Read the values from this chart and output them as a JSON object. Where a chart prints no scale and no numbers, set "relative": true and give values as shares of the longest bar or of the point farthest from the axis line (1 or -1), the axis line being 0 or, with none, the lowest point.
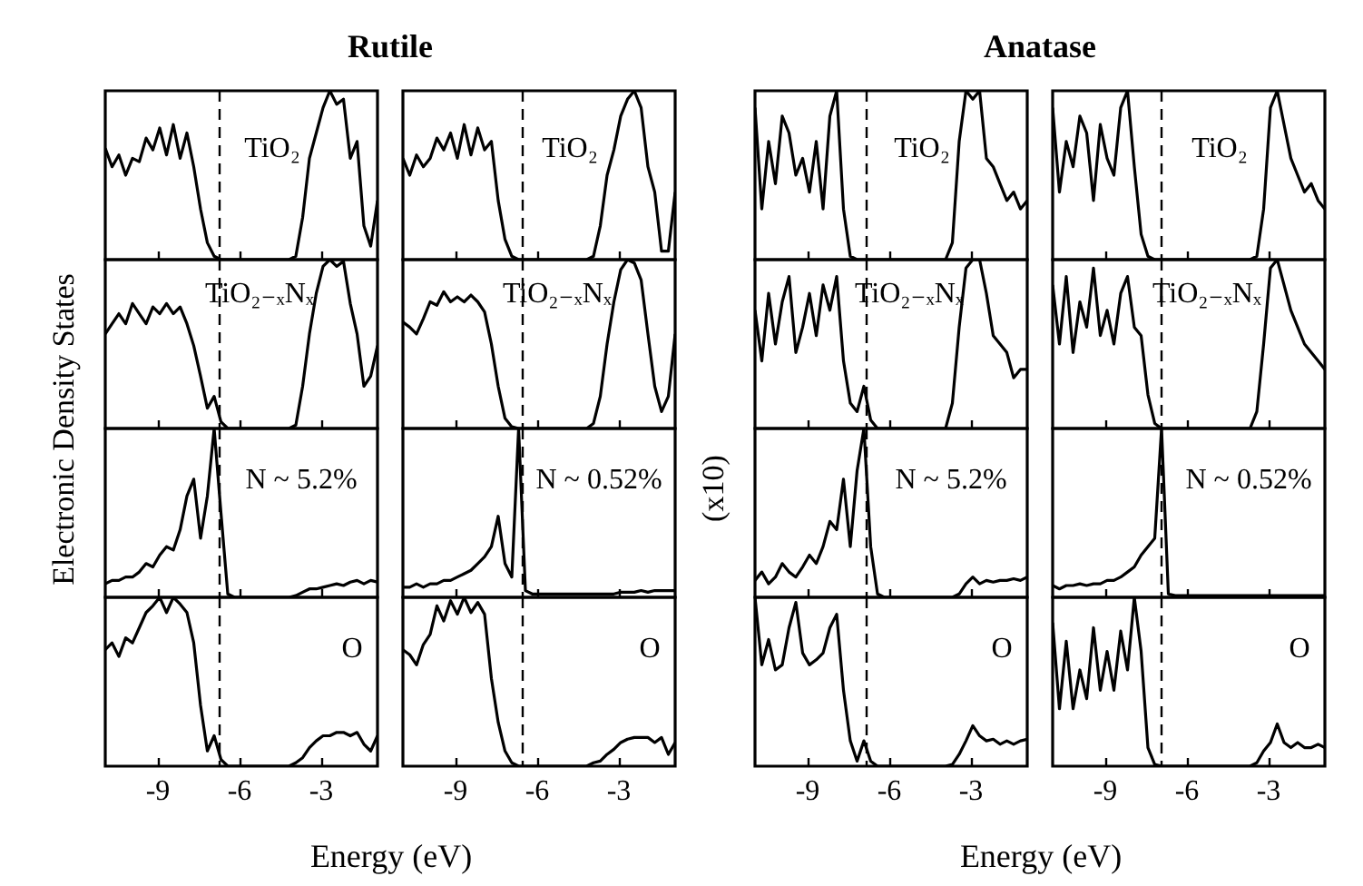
{
  "chart_data": [
    {
      "type": "line",
      "title": "Rutile",
      "annotations": [
        "TiO₂"
      ],
      "relative": true,
      "xlim": [
        -10.9,
        -0.9
      ],
      "xticks": [
        -9,
        -6,
        -3
      ],
      "tick_labels": false,
      "ref_lines": [
        {
          "axis": "x",
          "value": -6.7,
          "line_style": "dashed"
        }
      ],
      "x": [
        -10.9,
        -10.65,
        -10.4,
        -10.15,
        -9.9,
        -9.65,
        -9.4,
        -9.15,
        -8.9,
        -8.65,
        -8.4,
        -8.15,
        -7.9,
        -7.65,
        -7.4,
        -7.15,
        -6.9,
        -6.65,
        -6.4,
        -6.15,
        -5.9,
        -5.65,
        -5.4,
        -5.15,
        -4.9,
        -4.65,
        -4.4,
        -4.15,
        -3.9,
        -3.65,
        -3.4,
        -3.15,
        -2.9,
        -2.65,
        -2.4,
        -2.15,
        -1.9,
        -1.65,
        -1.4,
        -1.15,
        -0.9
      ],
      "series": [
        {
          "color": "#000000",
          "values": [
            0.66,
            0.55,
            0.62,
            0.5,
            0.6,
            0.58,
            0.72,
            0.65,
            0.78,
            0.62,
            0.8,
            0.6,
            0.75,
            0.55,
            0.3,
            0.1,
            0.02,
            0,
            0,
            0,
            0,
            0,
            0,
            0,
            0,
            0,
            0,
            0,
            0.02,
            0.25,
            0.6,
            0.75,
            0.9,
            1,
            0.92,
            0.95,
            0.6,
            0.7,
            0.2,
            0.08,
            0.35
          ]
        }
      ]
    },
    {
      "type": "line",
      "annotations": [
        "TiO₂"
      ],
      "relative": true,
      "xlim": [
        -10.9,
        -0.9
      ],
      "xticks": [
        -9,
        -6,
        -3
      ],
      "tick_labels": false,
      "ref_lines": [
        {
          "axis": "x",
          "value": -6.5,
          "line_style": "dashed"
        }
      ],
      "x": [
        -10.9,
        -10.65,
        -10.4,
        -10.15,
        -9.9,
        -9.65,
        -9.4,
        -9.15,
        -8.9,
        -8.65,
        -8.4,
        -8.15,
        -7.9,
        -7.65,
        -7.4,
        -7.15,
        -6.9,
        -6.65,
        -6.4,
        -6.15,
        -5.9,
        -5.65,
        -5.4,
        -5.15,
        -4.9,
        -4.65,
        -4.4,
        -4.15,
        -3.9,
        -3.65,
        -3.4,
        -3.15,
        -2.9,
        -2.65,
        -2.4,
        -2.15,
        -1.9,
        -1.65,
        -1.4,
        -1.15,
        -0.9
      ],
      "series": [
        {
          "color": "#000000",
          "values": [
            0.6,
            0.5,
            0.62,
            0.55,
            0.6,
            0.72,
            0.65,
            0.75,
            0.6,
            0.8,
            0.62,
            0.78,
            0.65,
            0.7,
            0.35,
            0.12,
            0.02,
            0,
            0,
            0,
            0,
            0,
            0,
            0,
            0,
            0,
            0,
            0,
            0.02,
            0.2,
            0.5,
            0.65,
            0.85,
            0.95,
            1,
            0.9,
            0.55,
            0.4,
            0.05,
            0.05,
            0.4
          ]
        }
      ]
    },
    {
      "type": "line",
      "title": "Anatase",
      "annotations": [
        "TiO₂"
      ],
      "relative": true,
      "xlim": [
        -10.9,
        -0.9
      ],
      "xticks": [
        -9,
        -6,
        -3
      ],
      "tick_labels": false,
      "ref_lines": [
        {
          "axis": "x",
          "value": -6.8,
          "line_style": "dashed"
        }
      ],
      "x": [
        -10.9,
        -10.65,
        -10.4,
        -10.15,
        -9.9,
        -9.65,
        -9.4,
        -9.15,
        -8.9,
        -8.65,
        -8.4,
        -8.15,
        -7.9,
        -7.65,
        -7.4,
        -7.15,
        -6.9,
        -6.65,
        -6.4,
        -6.15,
        -5.9,
        -5.65,
        -5.4,
        -5.15,
        -4.9,
        -4.65,
        -4.4,
        -4.15,
        -3.9,
        -3.65,
        -3.4,
        -3.15,
        -2.9,
        -2.65,
        -2.4,
        -2.15,
        -1.9,
        -1.65,
        -1.4,
        -1.15,
        -0.9
      ],
      "series": [
        {
          "color": "#000000",
          "values": [
            0.9,
            0.3,
            0.7,
            0.45,
            0.85,
            0.75,
            0.5,
            0.6,
            0.4,
            0.7,
            0.3,
            0.85,
            1,
            0.3,
            0.02,
            0,
            0,
            0,
            0,
            0,
            0,
            0,
            0,
            0,
            0,
            0,
            0,
            0,
            0,
            0.1,
            0.7,
            1,
            0.95,
            1,
            0.6,
            0.55,
            0.45,
            0.35,
            0.4,
            0.3,
            0.35
          ]
        }
      ]
    },
    {
      "type": "line",
      "annotations": [
        "TiO₂"
      ],
      "relative": true,
      "xlim": [
        -10.9,
        -0.9
      ],
      "xticks": [
        -9,
        -6,
        -3
      ],
      "tick_labels": false,
      "ref_lines": [
        {
          "axis": "x",
          "value": -6.9,
          "line_style": "dashed"
        }
      ],
      "x": [
        -10.9,
        -10.65,
        -10.4,
        -10.15,
        -9.9,
        -9.65,
        -9.4,
        -9.15,
        -8.9,
        -8.65,
        -8.4,
        -8.15,
        -7.9,
        -7.65,
        -7.4,
        -7.15,
        -6.9,
        -6.65,
        -6.4,
        -6.15,
        -5.9,
        -5.65,
        -5.4,
        -5.15,
        -4.9,
        -4.65,
        -4.4,
        -4.15,
        -3.9,
        -3.65,
        -3.4,
        -3.15,
        -2.9,
        -2.65,
        -2.4,
        -2.15,
        -1.9,
        -1.65,
        -1.4,
        -1.15,
        -0.9
      ],
      "series": [
        {
          "color": "#000000",
          "values": [
            0.9,
            0.4,
            0.7,
            0.55,
            0.85,
            0.75,
            0.35,
            0.8,
            0.6,
            0.5,
            0.9,
            1,
            0.55,
            0.15,
            0.02,
            0,
            0,
            0,
            0,
            0,
            0,
            0,
            0,
            0,
            0,
            0,
            0,
            0,
            0,
            0,
            0.02,
            0.3,
            0.9,
            1,
            0.8,
            0.6,
            0.5,
            0.4,
            0.45,
            0.35,
            0.3
          ]
        }
      ]
    },
    {
      "type": "line",
      "annotations": [
        "TiO₂₋ₓNₓ"
      ],
      "ylabel": "Electronic Density States",
      "relative": true,
      "xlim": [
        -10.9,
        -0.9
      ],
      "xticks": [
        -9,
        -6,
        -3
      ],
      "tick_labels": false,
      "ref_lines": [
        {
          "axis": "x",
          "value": -6.7,
          "line_style": "dashed"
        }
      ],
      "x": [
        -10.9,
        -10.65,
        -10.4,
        -10.15,
        -9.9,
        -9.65,
        -9.4,
        -9.15,
        -8.9,
        -8.65,
        -8.4,
        -8.15,
        -7.9,
        -7.65,
        -7.4,
        -7.15,
        -6.9,
        -6.65,
        -6.4,
        -6.15,
        -5.9,
        -5.65,
        -5.4,
        -5.15,
        -4.9,
        -4.65,
        -4.4,
        -4.15,
        -3.9,
        -3.65,
        -3.4,
        -3.15,
        -2.9,
        -2.65,
        -2.4,
        -2.15,
        -1.9,
        -1.65,
        -1.4,
        -1.15,
        -0.9
      ],
      "series": [
        {
          "color": "#000000",
          "values": [
            0.56,
            0.62,
            0.68,
            0.62,
            0.74,
            0.68,
            0.62,
            0.72,
            0.68,
            0.74,
            0.68,
            0.72,
            0.62,
            0.49,
            0.31,
            0.12,
            0.19,
            0.04,
            0,
            0,
            0,
            0,
            0,
            0,
            0,
            0,
            0,
            0,
            0.02,
            0.25,
            0.56,
            0.8,
            0.96,
            1,
            0.96,
            0.99,
            0.74,
            0.56,
            0.25,
            0.31,
            0.49
          ]
        }
      ]
    },
    {
      "type": "line",
      "annotations": [
        "TiO₂₋ₓNₓ"
      ],
      "relative": true,
      "xlim": [
        -10.9,
        -0.9
      ],
      "xticks": [
        -9,
        -6,
        -3
      ],
      "tick_labels": false,
      "ref_lines": [
        {
          "axis": "x",
          "value": -6.5,
          "line_style": "dashed"
        }
      ],
      "x": [
        -10.9,
        -10.65,
        -10.4,
        -10.15,
        -9.9,
        -9.65,
        -9.4,
        -9.15,
        -8.9,
        -8.65,
        -8.4,
        -8.15,
        -7.9,
        -7.65,
        -7.4,
        -7.15,
        -6.9,
        -6.65,
        -6.4,
        -6.15,
        -5.9,
        -5.65,
        -5.4,
        -5.15,
        -4.9,
        -4.65,
        -4.4,
        -4.15,
        -3.9,
        -3.65,
        -3.4,
        -3.15,
        -2.9,
        -2.65,
        -2.4,
        -2.15,
        -1.9,
        -1.65,
        -1.4,
        -1.15,
        -0.9
      ],
      "series": [
        {
          "color": "#000000",
          "values": [
            0.63,
            0.6,
            0.56,
            0.65,
            0.75,
            0.73,
            0.81,
            0.75,
            0.78,
            0.75,
            0.79,
            0.75,
            0.69,
            0.5,
            0.25,
            0.06,
            0.01,
            0,
            0,
            0,
            0,
            0,
            0,
            0,
            0,
            0,
            0,
            0,
            0.03,
            0.19,
            0.5,
            0.75,
            0.94,
            1,
            0.98,
            0.88,
            0.56,
            0.25,
            0.1,
            0.19,
            0.56
          ]
        }
      ]
    },
    {
      "type": "line",
      "annotations": [
        "TiO₂₋ₓNₓ"
      ],
      "relative": true,
      "xlim": [
        -10.9,
        -0.9
      ],
      "xticks": [
        -9,
        -6,
        -3
      ],
      "tick_labels": false,
      "ref_lines": [
        {
          "axis": "x",
          "value": -6.8,
          "line_style": "dashed"
        }
      ],
      "x": [
        -10.9,
        -10.65,
        -10.4,
        -10.15,
        -9.9,
        -9.65,
        -9.4,
        -9.15,
        -8.9,
        -8.65,
        -8.4,
        -8.15,
        -7.9,
        -7.65,
        -7.4,
        -7.15,
        -6.9,
        -6.65,
        -6.4,
        -6.15,
        -5.9,
        -5.65,
        -5.4,
        -5.15,
        -4.9,
        -4.65,
        -4.4,
        -4.15,
        -3.9,
        -3.65,
        -3.4,
        -3.15,
        -2.9,
        -2.65,
        -2.4,
        -2.15,
        -1.9,
        -1.65,
        -1.4,
        -1.15,
        -0.9
      ],
      "series": [
        {
          "color": "#000000",
          "values": [
            0.7,
            0.4,
            0.8,
            0.5,
            0.75,
            0.9,
            0.45,
            0.6,
            0.8,
            0.55,
            0.85,
            0.7,
            0.9,
            0.4,
            0.15,
            0.1,
            0.25,
            0.05,
            0,
            0,
            0,
            0,
            0,
            0,
            0,
            0,
            0,
            0,
            0,
            0.15,
            0.6,
            0.95,
            1,
            1,
            0.8,
            0.55,
            0.5,
            0.45,
            0.3,
            0.35,
            0.35
          ]
        }
      ]
    },
    {
      "type": "line",
      "annotations": [
        "TiO₂₋ₓNₓ"
      ],
      "relative": true,
      "xlim": [
        -10.9,
        -0.9
      ],
      "xticks": [
        -9,
        -6,
        -3
      ],
      "tick_labels": false,
      "ref_lines": [
        {
          "axis": "x",
          "value": -6.9,
          "line_style": "dashed"
        }
      ],
      "x": [
        -10.9,
        -10.65,
        -10.4,
        -10.15,
        -9.9,
        -9.65,
        -9.4,
        -9.15,
        -8.9,
        -8.65,
        -8.4,
        -8.15,
        -7.9,
        -7.65,
        -7.4,
        -7.15,
        -6.9,
        -6.65,
        -6.4,
        -6.15,
        -5.9,
        -5.65,
        -5.4,
        -5.15,
        -4.9,
        -4.65,
        -4.4,
        -4.15,
        -3.9,
        -3.65,
        -3.4,
        -3.15,
        -2.9,
        -2.65,
        -2.4,
        -2.15,
        -1.9,
        -1.65,
        -1.4,
        -1.15,
        -0.9
      ],
      "series": [
        {
          "color": "#000000",
          "values": [
            0.85,
            0.5,
            0.9,
            0.45,
            0.75,
            0.6,
            0.95,
            0.55,
            0.7,
            0.5,
            0.8,
            0.9,
            0.6,
            0.55,
            0.2,
            0.03,
            0,
            0,
            0,
            0,
            0,
            0,
            0,
            0,
            0,
            0,
            0,
            0,
            0,
            0,
            0.1,
            0.5,
            0.95,
            1,
            0.85,
            0.7,
            0.6,
            0.5,
            0.45,
            0.4,
            0.35
          ]
        }
      ]
    },
    {
      "type": "line",
      "annotations": [
        "N ~ 5.2%"
      ],
      "relative": true,
      "xlim": [
        -10.9,
        -0.9
      ],
      "xticks": [
        -9,
        -6,
        -3
      ],
      "tick_labels": false,
      "ref_lines": [
        {
          "axis": "x",
          "value": -6.7,
          "line_style": "dashed"
        }
      ],
      "x": [
        -10.9,
        -10.65,
        -10.4,
        -10.15,
        -9.9,
        -9.65,
        -9.4,
        -9.15,
        -8.9,
        -8.65,
        -8.4,
        -8.15,
        -7.9,
        -7.65,
        -7.4,
        -7.15,
        -6.9,
        -6.65,
        -6.4,
        -6.15,
        -5.9,
        -5.65,
        -5.4,
        -5.15,
        -4.9,
        -4.65,
        -4.4,
        -4.15,
        -3.9,
        -3.65,
        -3.4,
        -3.15,
        -2.9,
        -2.65,
        -2.4,
        -2.15,
        -1.9,
        -1.65,
        -1.4,
        -1.15,
        -0.9
      ],
      "series": [
        {
          "color": "#000000",
          "values": [
            0.08,
            0.1,
            0.1,
            0.12,
            0.12,
            0.15,
            0.2,
            0.18,
            0.25,
            0.3,
            0.28,
            0.4,
            0.6,
            0.7,
            0.35,
            0.6,
            1,
            0.5,
            0.02,
            0,
            0,
            0,
            0,
            0,
            0,
            0,
            0,
            0,
            0.01,
            0.03,
            0.05,
            0.05,
            0.06,
            0.07,
            0.08,
            0.07,
            0.09,
            0.1,
            0.08,
            0.1,
            0.09
          ]
        }
      ]
    },
    {
      "type": "line",
      "annotations": [
        "N ~ 0.52%"
      ],
      "relative": true,
      "xlim": [
        -10.9,
        -0.9
      ],
      "xticks": [
        -9,
        -6,
        -3
      ],
      "tick_labels": false,
      "ref_lines": [
        {
          "axis": "x",
          "value": -6.5,
          "line_style": "dashed"
        }
      ],
      "x": [
        -10.9,
        -10.65,
        -10.4,
        -10.15,
        -9.9,
        -9.65,
        -9.4,
        -9.15,
        -8.9,
        -8.65,
        -8.4,
        -8.15,
        -7.9,
        -7.65,
        -7.4,
        -7.15,
        -6.9,
        -6.65,
        -6.4,
        -6.15,
        -5.9,
        -5.65,
        -5.4,
        -5.15,
        -4.9,
        -4.65,
        -4.4,
        -4.15,
        -3.9,
        -3.65,
        -3.4,
        -3.15,
        -2.9,
        -2.65,
        -2.4,
        -2.15,
        -1.9,
        -1.65,
        -1.4,
        -1.15,
        -0.9
      ],
      "series": [
        {
          "color": "#000000",
          "values": [
            0.06,
            0.06,
            0.08,
            0.06,
            0.08,
            0.08,
            0.1,
            0.1,
            0.12,
            0.14,
            0.16,
            0.2,
            0.24,
            0.3,
            0.48,
            0.2,
            0.12,
            1,
            0.04,
            0.02,
            0.02,
            0.02,
            0.02,
            0.02,
            0.02,
            0.02,
            0.02,
            0.02,
            0.02,
            0.02,
            0.02,
            0.02,
            0.03,
            0.03,
            0.03,
            0.04,
            0.03,
            0.04,
            0.04,
            0.04,
            0.04
          ]
        }
      ]
    },
    {
      "type": "line",
      "annotations": [
        "N ~ 5.2%"
      ],
      "ylabel": "(x10)",
      "relative": true,
      "xlim": [
        -10.9,
        -0.9
      ],
      "xticks": [
        -9,
        -6,
        -3
      ],
      "tick_labels": false,
      "ref_lines": [
        {
          "axis": "x",
          "value": -6.8,
          "line_style": "dashed"
        }
      ],
      "x": [
        -10.9,
        -10.65,
        -10.4,
        -10.15,
        -9.9,
        -9.65,
        -9.4,
        -9.15,
        -8.9,
        -8.65,
        -8.4,
        -8.15,
        -7.9,
        -7.65,
        -7.4,
        -7.15,
        -6.9,
        -6.65,
        -6.4,
        -6.15,
        -5.9,
        -5.65,
        -5.4,
        -5.15,
        -4.9,
        -4.65,
        -4.4,
        -4.15,
        -3.9,
        -3.65,
        -3.4,
        -3.15,
        -2.9,
        -2.65,
        -2.4,
        -2.15,
        -1.9,
        -1.65,
        -1.4,
        -1.15,
        -0.9
      ],
      "series": [
        {
          "color": "#000000",
          "values": [
            0.1,
            0.15,
            0.08,
            0.12,
            0.2,
            0.15,
            0.12,
            0.18,
            0.25,
            0.2,
            0.3,
            0.45,
            0.4,
            0.7,
            0.3,
            0.75,
            1,
            0.3,
            0.02,
            0,
            0,
            0,
            0,
            0,
            0,
            0,
            0,
            0,
            0,
            0,
            0.02,
            0.08,
            0.12,
            0.08,
            0.1,
            0.09,
            0.1,
            0.1,
            0.11,
            0.1,
            0.12
          ]
        }
      ]
    },
    {
      "type": "line",
      "annotations": [
        "N ~ 0.52%"
      ],
      "relative": true,
      "xlim": [
        -10.9,
        -0.9
      ],
      "xticks": [
        -9,
        -6,
        -3
      ],
      "tick_labels": false,
      "ref_lines": [
        {
          "axis": "x",
          "value": -6.9,
          "line_style": "dashed"
        }
      ],
      "x": [
        -10.9,
        -10.65,
        -10.4,
        -10.15,
        -9.9,
        -9.65,
        -9.4,
        -9.15,
        -8.9,
        -8.65,
        -8.4,
        -8.15,
        -7.9,
        -7.65,
        -7.4,
        -7.15,
        -6.9,
        -6.65,
        -6.4,
        -6.15,
        -5.9,
        -5.65,
        -5.4,
        -5.15,
        -4.9,
        -4.65,
        -4.4,
        -4.15,
        -3.9,
        -3.65,
        -3.4,
        -3.15,
        -2.9,
        -2.65,
        -2.4,
        -2.15,
        -1.9,
        -1.65,
        -1.4,
        -1.15,
        -0.9
      ],
      "series": [
        {
          "color": "#000000",
          "values": [
            0.07,
            0.05,
            0.07,
            0.07,
            0.08,
            0.07,
            0.08,
            0.08,
            0.1,
            0.1,
            0.12,
            0.15,
            0.18,
            0.25,
            0.3,
            0.35,
            1,
            0.02,
            0.01,
            0.01,
            0.01,
            0.01,
            0.01,
            0.01,
            0.01,
            0.01,
            0.01,
            0.01,
            0.01,
            0.01,
            0.01,
            0.01,
            0.01,
            0.01,
            0.01,
            0.01,
            0.01,
            0.01,
            0.01,
            0.01,
            0.01
          ]
        }
      ]
    },
    {
      "type": "line",
      "annotations": [
        "O"
      ],
      "xlabel": "Energy (eV)",
      "relative": true,
      "xlim": [
        -10.9,
        -0.9
      ],
      "xticks": [
        -9,
        -6,
        -3
      ],
      "tick_labels": "x",
      "ref_lines": [
        {
          "axis": "x",
          "value": -6.7,
          "line_style": "dashed"
        }
      ],
      "x": [
        -10.9,
        -10.65,
        -10.4,
        -10.15,
        -9.9,
        -9.65,
        -9.4,
        -9.15,
        -8.9,
        -8.65,
        -8.4,
        -8.15,
        -7.9,
        -7.65,
        -7.4,
        -7.15,
        -6.9,
        -6.65,
        -6.4,
        -6.15,
        -5.9,
        -5.65,
        -5.4,
        -5.15,
        -4.9,
        -4.65,
        -4.4,
        -4.15,
        -3.9,
        -3.65,
        -3.4,
        -3.15,
        -2.9,
        -2.65,
        -2.4,
        -2.15,
        -1.9,
        -1.65,
        -1.4,
        -1.15,
        -0.9
      ],
      "series": [
        {
          "color": "#000000",
          "values": [
            0.69,
            0.73,
            0.65,
            0.76,
            0.73,
            0.82,
            0.91,
            0.95,
            1,
            0.91,
            1,
            0.96,
            0.91,
            0.73,
            0.36,
            0.09,
            0.18,
            0.04,
            0,
            0,
            0,
            0,
            0,
            0,
            0,
            0,
            0,
            0,
            0.02,
            0.05,
            0.11,
            0.15,
            0.18,
            0.18,
            0.2,
            0.2,
            0.18,
            0.2,
            0.13,
            0.09,
            0.18
          ]
        }
      ]
    },
    {
      "type": "line",
      "annotations": [
        "O"
      ],
      "relative": true,
      "xlim": [
        -10.9,
        -0.9
      ],
      "xticks": [
        -9,
        -6,
        -3
      ],
      "tick_labels": "x",
      "ref_lines": [
        {
          "axis": "x",
          "value": -6.5,
          "line_style": "dashed"
        }
      ],
      "x": [
        -10.9,
        -10.65,
        -10.4,
        -10.15,
        -9.9,
        -9.65,
        -9.4,
        -9.15,
        -8.9,
        -8.65,
        -8.4,
        -8.15,
        -7.9,
        -7.65,
        -7.4,
        -7.15,
        -6.9,
        -6.65,
        -6.4,
        -6.15,
        -5.9,
        -5.65,
        -5.4,
        -5.15,
        -4.9,
        -4.65,
        -4.4,
        -4.15,
        -3.9,
        -3.65,
        -3.4,
        -3.15,
        -2.9,
        -2.65,
        -2.4,
        -2.15,
        -1.9,
        -1.65,
        -1.4,
        -1.15,
        -0.9
      ],
      "series": [
        {
          "color": "#000000",
          "values": [
            0.69,
            0.66,
            0.6,
            0.72,
            0.78,
            0.95,
            0.86,
            0.98,
            0.9,
            1,
            0.91,
            0.97,
            0.9,
            0.52,
            0.26,
            0.09,
            0.02,
            0,
            0,
            0,
            0,
            0,
            0,
            0,
            0,
            0,
            0,
            0,
            0.02,
            0.03,
            0.07,
            0.1,
            0.14,
            0.16,
            0.17,
            0.17,
            0.17,
            0.14,
            0.17,
            0.07,
            0.14
          ]
        }
      ]
    },
    {
      "type": "line",
      "annotations": [
        "O"
      ],
      "xlabel": "Energy (eV)",
      "relative": true,
      "xlim": [
        -10.9,
        -0.9
      ],
      "xticks": [
        -9,
        -6,
        -3
      ],
      "tick_labels": "x",
      "ref_lines": [
        {
          "axis": "x",
          "value": -6.8,
          "line_style": "dashed"
        }
      ],
      "x": [
        -10.9,
        -10.65,
        -10.4,
        -10.15,
        -9.9,
        -9.65,
        -9.4,
        -9.15,
        -8.9,
        -8.65,
        -8.4,
        -8.15,
        -7.9,
        -7.65,
        -7.4,
        -7.15,
        -6.9,
        -6.65,
        -6.4,
        -6.15,
        -5.9,
        -5.65,
        -5.4,
        -5.15,
        -4.9,
        -4.65,
        -4.4,
        -4.15,
        -3.9,
        -3.65,
        -3.4,
        -3.15,
        -2.9,
        -2.65,
        -2.4,
        -2.15,
        -1.9,
        -1.65,
        -1.4,
        -1.15,
        -0.9
      ],
      "series": [
        {
          "color": "#000000",
          "values": [
            1,
            0.6,
            0.75,
            0.57,
            0.6,
            0.82,
            0.97,
            0.67,
            0.6,
            0.63,
            0.67,
            0.82,
            0.9,
            0.45,
            0.15,
            0.03,
            0.15,
            0.03,
            0,
            0,
            0,
            0,
            0,
            0,
            0,
            0,
            0,
            0,
            0,
            0.01,
            0.07,
            0.15,
            0.24,
            0.18,
            0.15,
            0.16,
            0.13,
            0.15,
            0.13,
            0.15,
            0.16
          ]
        }
      ]
    },
    {
      "type": "line",
      "annotations": [
        "O"
      ],
      "relative": true,
      "xlim": [
        -10.9,
        -0.9
      ],
      "xticks": [
        -9,
        -6,
        -3
      ],
      "tick_labels": "x",
      "ref_lines": [
        {
          "axis": "x",
          "value": -6.9,
          "line_style": "dashed"
        }
      ],
      "x": [
        -10.9,
        -10.65,
        -10.4,
        -10.15,
        -9.9,
        -9.65,
        -9.4,
        -9.15,
        -8.9,
        -8.65,
        -8.4,
        -8.15,
        -7.9,
        -7.65,
        -7.4,
        -7.15,
        -6.9,
        -6.65,
        -6.4,
        -6.15,
        -5.9,
        -5.65,
        -5.4,
        -5.15,
        -4.9,
        -4.65,
        -4.4,
        -4.15,
        -3.9,
        -3.65,
        -3.4,
        -3.15,
        -2.9,
        -2.65,
        -2.4,
        -2.15,
        -1.9,
        -1.65,
        -1.4,
        -1.15,
        -0.9
      ],
      "series": [
        {
          "color": "#000000",
          "values": [
            0.85,
            0.34,
            0.74,
            0.34,
            0.57,
            0.4,
            0.82,
            0.45,
            0.68,
            0.45,
            0.8,
            0.57,
            1,
            0.68,
            0.11,
            0.01,
            0,
            0,
            0,
            0,
            0,
            0,
            0,
            0,
            0,
            0,
            0,
            0,
            0,
            0,
            0.02,
            0.09,
            0.14,
            0.25,
            0.14,
            0.11,
            0.14,
            0.11,
            0.11,
            0.13,
            0.11
          ]
        }
      ]
    }
  ]
}
